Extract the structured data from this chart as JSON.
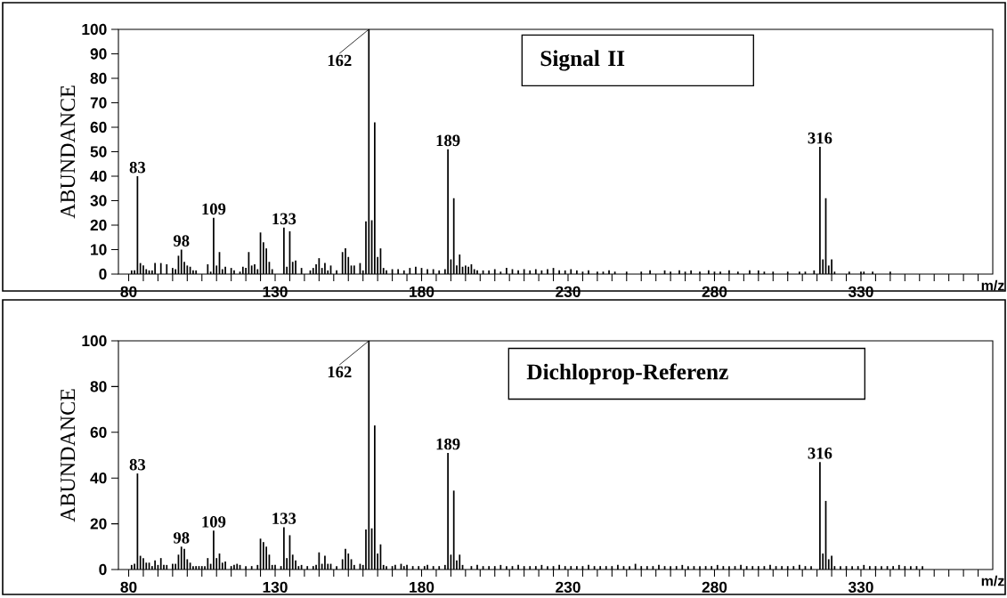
{
  "chart_data": [
    {
      "type": "bar",
      "color": "#000000",
      "xlabel": "m/z",
      "ylabel": "ABUNDANCE",
      "xlim": [
        76.5,
        375
      ],
      "ylim": [
        0,
        100
      ],
      "xticks": [
        80,
        {
          "value": 85,
          "label": null
        },
        {
          "value": 90,
          "label": null
        },
        {
          "value": 95,
          "label": null
        },
        {
          "value": 100,
          "label": null
        },
        {
          "value": 105,
          "label": null
        },
        {
          "value": 110,
          "label": null
        },
        {
          "value": 115,
          "label": null
        },
        {
          "value": 120,
          "label": null
        },
        {
          "value": 125,
          "label": null
        },
        130,
        {
          "value": 135,
          "label": null
        },
        {
          "value": 140,
          "label": null
        },
        {
          "value": 145,
          "label": null
        },
        {
          "value": 150,
          "label": null
        },
        {
          "value": 155,
          "label": null
        },
        {
          "value": 160,
          "label": null
        },
        {
          "value": 165,
          "label": null
        },
        {
          "value": 170,
          "label": null
        },
        {
          "value": 175,
          "label": null
        },
        180,
        {
          "value": 185,
          "label": null
        },
        {
          "value": 190,
          "label": null
        },
        {
          "value": 195,
          "label": null
        },
        {
          "value": 200,
          "label": null
        },
        {
          "value": 205,
          "label": null
        },
        {
          "value": 210,
          "label": null
        },
        {
          "value": 215,
          "label": null
        },
        {
          "value": 220,
          "label": null
        },
        {
          "value": 225,
          "label": null
        },
        230,
        {
          "value": 235,
          "label": null
        },
        {
          "value": 240,
          "label": null
        },
        {
          "value": 245,
          "label": null
        },
        {
          "value": 250,
          "label": null
        },
        {
          "value": 255,
          "label": null
        },
        {
          "value": 260,
          "label": null
        },
        {
          "value": 265,
          "label": null
        },
        {
          "value": 270,
          "label": null
        },
        {
          "value": 275,
          "label": null
        },
        280,
        {
          "value": 285,
          "label": null
        },
        {
          "value": 290,
          "label": null
        },
        {
          "value": 295,
          "label": null
        },
        {
          "value": 300,
          "label": null
        },
        {
          "value": 305,
          "label": null
        },
        {
          "value": 310,
          "label": null
        },
        {
          "value": 315,
          "label": null
        },
        {
          "value": 320,
          "label": null
        },
        {
          "value": 325,
          "label": null
        },
        330,
        {
          "value": 335,
          "label": null
        },
        {
          "value": 340,
          "label": null
        },
        {
          "value": 345,
          "label": null
        },
        {
          "value": 350,
          "label": null
        },
        {
          "value": 355,
          "label": null
        },
        {
          "value": 360,
          "label": null
        },
        {
          "value": 365,
          "label": null
        },
        {
          "value": 370,
          "label": null
        }
      ],
      "yticks": [
        0,
        10,
        20,
        30,
        40,
        50,
        60,
        70,
        80,
        90,
        100
      ],
      "x": [
        81,
        82,
        83,
        84,
        85,
        86,
        87,
        88,
        89,
        91,
        93,
        95,
        96,
        97,
        98,
        99,
        100,
        101,
        102,
        103,
        107,
        108,
        109,
        110,
        111,
        112,
        113,
        115,
        116,
        118,
        119,
        120,
        121,
        122,
        123,
        124,
        125,
        126,
        127,
        128,
        129,
        133,
        134,
        135,
        136,
        137,
        139,
        142,
        143,
        144,
        145,
        146,
        147,
        148,
        149,
        151,
        153,
        154,
        155,
        156,
        157,
        159,
        160,
        161,
        162,
        163,
        164,
        165,
        166,
        167,
        168,
        170,
        172,
        174,
        176,
        178,
        180,
        182,
        184,
        186,
        188,
        189,
        190,
        191,
        192,
        193,
        194,
        195,
        196,
        197,
        198,
        199,
        201,
        203,
        205,
        207,
        209,
        211,
        213,
        215,
        217,
        219,
        221,
        223,
        225,
        227,
        229,
        231,
        233,
        235,
        237,
        240,
        242,
        244,
        246,
        250,
        255,
        258,
        263,
        265,
        268,
        270,
        272,
        275,
        278,
        280,
        282,
        285,
        288,
        292,
        295,
        297,
        300,
        305,
        309,
        311,
        314,
        316,
        317,
        318,
        319,
        320,
        321,
        326,
        330,
        331,
        334,
        340
      ],
      "values": [
        1.5,
        1.5,
        40,
        4.5,
        3.5,
        2,
        1.5,
        1.5,
        4.5,
        4.5,
        4,
        2.5,
        2,
        7.5,
        10,
        5,
        3.5,
        3,
        1.5,
        1.5,
        4,
        1,
        23,
        3.5,
        9,
        2,
        3,
        2.5,
        1.5,
        1,
        3,
        2.5,
        9,
        3.5,
        4,
        2,
        17,
        13,
        10.5,
        5,
        2,
        19,
        3,
        17.5,
        5,
        5.5,
        2.5,
        1.5,
        2.5,
        4,
        6.5,
        2.5,
        4.5,
        1.5,
        3.5,
        1.5,
        9,
        10.5,
        7,
        3.5,
        3.5,
        4.5,
        1.5,
        21.5,
        100,
        22,
        62,
        7,
        10.5,
        2.5,
        1.5,
        2,
        2,
        1.5,
        2.5,
        3,
        2.5,
        2,
        2,
        1.5,
        2,
        51,
        6,
        31,
        3.5,
        8,
        3,
        3.5,
        3,
        4,
        2,
        1.5,
        1.5,
        1.5,
        2,
        1,
        2.5,
        2,
        1.5,
        2,
        1.5,
        2,
        1.5,
        2,
        2.5,
        1.5,
        1.5,
        2,
        1.5,
        1,
        1.5,
        1,
        1,
        1.5,
        1,
        1,
        1,
        1.5,
        1.5,
        1,
        1.5,
        1,
        1.5,
        1,
        1.5,
        1,
        1,
        1.5,
        1,
        1.5,
        1.5,
        1,
        1,
        1,
        1,
        1,
        1.5,
        52,
        6,
        31,
        3.5,
        6,
        1,
        1,
        1,
        1,
        1,
        1
      ],
      "annotations": [
        "Signal II",
        {
          "text": "83",
          "x": 83,
          "y": 40
        },
        {
          "text": "98",
          "x": 98,
          "y": 10
        },
        {
          "text": "109",
          "x": 109,
          "y": 23
        },
        {
          "text": "133",
          "x": 133,
          "y": 19
        },
        {
          "text": "162",
          "x": 162,
          "y": 100
        },
        {
          "text": "189",
          "x": 189,
          "y": 51
        },
        {
          "text": "316",
          "x": 316,
          "y": 52
        }
      ]
    },
    {
      "type": "bar",
      "color": "#000000",
      "xlabel": "m/z",
      "ylabel": "ABUNDANCE",
      "xlim": [
        76.5,
        375
      ],
      "ylim": [
        0,
        100
      ],
      "xticks": [
        80,
        {
          "value": 85,
          "label": null
        },
        {
          "value": 90,
          "label": null
        },
        {
          "value": 95,
          "label": null
        },
        {
          "value": 100,
          "label": null
        },
        {
          "value": 105,
          "label": null
        },
        {
          "value": 110,
          "label": null
        },
        {
          "value": 115,
          "label": null
        },
        {
          "value": 120,
          "label": null
        },
        {
          "value": 125,
          "label": null
        },
        130,
        {
          "value": 135,
          "label": null
        },
        {
          "value": 140,
          "label": null
        },
        {
          "value": 145,
          "label": null
        },
        {
          "value": 150,
          "label": null
        },
        {
          "value": 155,
          "label": null
        },
        {
          "value": 160,
          "label": null
        },
        {
          "value": 165,
          "label": null
        },
        {
          "value": 170,
          "label": null
        },
        {
          "value": 175,
          "label": null
        },
        180,
        {
          "value": 185,
          "label": null
        },
        {
          "value": 190,
          "label": null
        },
        {
          "value": 195,
          "label": null
        },
        {
          "value": 200,
          "label": null
        },
        {
          "value": 205,
          "label": null
        },
        {
          "value": 210,
          "label": null
        },
        {
          "value": 215,
          "label": null
        },
        {
          "value": 220,
          "label": null
        },
        {
          "value": 225,
          "label": null
        },
        230,
        {
          "value": 235,
          "label": null
        },
        {
          "value": 240,
          "label": null
        },
        {
          "value": 245,
          "label": null
        },
        {
          "value": 250,
          "label": null
        },
        {
          "value": 255,
          "label": null
        },
        {
          "value": 260,
          "label": null
        },
        {
          "value": 265,
          "label": null
        },
        {
          "value": 270,
          "label": null
        },
        {
          "value": 275,
          "label": null
        },
        280,
        {
          "value": 285,
          "label": null
        },
        {
          "value": 290,
          "label": null
        },
        {
          "value": 295,
          "label": null
        },
        {
          "value": 300,
          "label": null
        },
        {
          "value": 305,
          "label": null
        },
        {
          "value": 310,
          "label": null
        },
        {
          "value": 315,
          "label": null
        },
        {
          "value": 320,
          "label": null
        },
        {
          "value": 325,
          "label": null
        },
        330,
        {
          "value": 335,
          "label": null
        },
        {
          "value": 340,
          "label": null
        },
        {
          "value": 345,
          "label": null
        },
        {
          "value": 350,
          "label": null
        },
        {
          "value": 355,
          "label": null
        },
        {
          "value": 360,
          "label": null
        },
        {
          "value": 365,
          "label": null
        },
        {
          "value": 370,
          "label": null
        }
      ],
      "yticks": [
        0,
        20,
        40,
        60,
        80,
        100
      ],
      "x": [
        81,
        82,
        83,
        84,
        85,
        86,
        87,
        88,
        89,
        90,
        91,
        92,
        93,
        95,
        96,
        97,
        98,
        99,
        100,
        101,
        102,
        103,
        104,
        105,
        106,
        107,
        108,
        109,
        110,
        111,
        112,
        113,
        115,
        116,
        117,
        118,
        120,
        122,
        124,
        125,
        126,
        127,
        128,
        129,
        130,
        132,
        133,
        134,
        135,
        136,
        137,
        138,
        139,
        141,
        143,
        144,
        145,
        146,
        147,
        148,
        149,
        151,
        153,
        154,
        155,
        156,
        157,
        159,
        160,
        161,
        162,
        163,
        164,
        165,
        166,
        167,
        168,
        170,
        171,
        173,
        174,
        175,
        177,
        179,
        181,
        182,
        184,
        186,
        188,
        189,
        190,
        191,
        192,
        193,
        194,
        197,
        199,
        201,
        203,
        205,
        207,
        209,
        211,
        213,
        215,
        217,
        219,
        221,
        223,
        225,
        227,
        229,
        231,
        233,
        235,
        237,
        239,
        241,
        243,
        245,
        247,
        249,
        251,
        253,
        255,
        257,
        259,
        261,
        263,
        265,
        267,
        269,
        271,
        273,
        275,
        277,
        279,
        281,
        283,
        285,
        287,
        289,
        291,
        293,
        295,
        297,
        299,
        301,
        303,
        305,
        307,
        309,
        311,
        313,
        316,
        317,
        318,
        319,
        320,
        321,
        323,
        325,
        327,
        329,
        331,
        333,
        335,
        337,
        339,
        341,
        343,
        345,
        347,
        349,
        351
      ],
      "values": [
        2,
        2.5,
        42,
        6,
        5,
        3,
        3,
        1.5,
        4,
        2,
        5,
        2,
        2,
        2.5,
        2.5,
        6.5,
        10,
        9,
        4.5,
        3,
        1.5,
        1.5,
        1.5,
        1.5,
        1.5,
        5,
        2.5,
        17,
        5,
        7,
        3,
        3.5,
        1.5,
        2,
        2.5,
        2,
        1.5,
        1.5,
        2,
        13.5,
        12,
        10,
        6.5,
        2,
        2,
        1.5,
        18.5,
        5,
        15,
        6.5,
        4,
        1.5,
        2,
        1.5,
        1.5,
        2,
        7.5,
        2.5,
        6,
        2.5,
        2.5,
        1.5,
        4.5,
        9,
        7,
        4.5,
        2,
        2.5,
        2,
        17.5,
        100,
        18,
        63,
        7,
        11,
        2,
        1.5,
        1.5,
        2,
        2.5,
        1.5,
        2,
        1.5,
        1.5,
        1.5,
        2,
        1.5,
        1.5,
        2,
        51,
        6.5,
        34.5,
        4,
        6.5,
        2,
        1.5,
        2,
        1.5,
        1.5,
        1.5,
        2,
        1.5,
        1.5,
        2,
        1.5,
        1.5,
        1.5,
        2,
        1.5,
        1.5,
        2,
        1.5,
        1.5,
        1.5,
        1.5,
        2,
        1.5,
        1.5,
        1.5,
        1.5,
        2,
        1.5,
        1.5,
        2.5,
        1.5,
        1.5,
        1.5,
        2,
        1.5,
        1.5,
        1.5,
        2,
        1.5,
        1.5,
        1.5,
        1.5,
        1.5,
        2,
        1.5,
        1.5,
        1.5,
        2,
        1.5,
        1.5,
        1.5,
        1.5,
        2,
        1.5,
        1.5,
        1.5,
        1.5,
        2,
        1.5,
        1.5,
        47,
        7,
        30,
        4.5,
        6,
        1.5,
        1.5,
        1.5,
        1.5,
        1.5,
        2,
        1.5,
        1.5,
        1.5,
        1.5,
        1.5,
        2,
        1.5,
        1.5,
        1.5,
        1.5
      ],
      "annotations": [
        "Dichloprop-Referenz",
        {
          "text": "83",
          "x": 83,
          "y": 42
        },
        {
          "text": "98",
          "x": 98,
          "y": 10
        },
        {
          "text": "109",
          "x": 109,
          "y": 17
        },
        {
          "text": "133",
          "x": 133,
          "y": 18.5
        },
        {
          "text": "162",
          "x": 162,
          "y": 100
        },
        {
          "text": "189",
          "x": 189,
          "y": 51
        },
        {
          "text": "316",
          "x": 316,
          "y": 47
        }
      ]
    }
  ]
}
